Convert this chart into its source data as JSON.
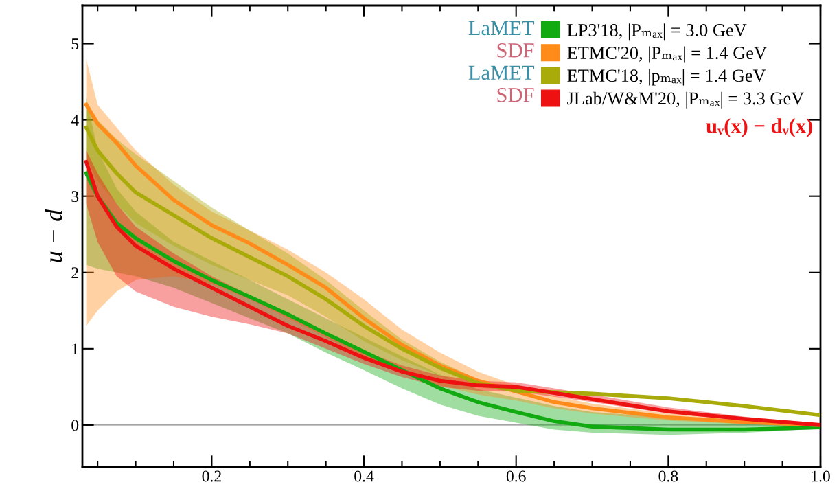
{
  "chart_data": {
    "type": "line",
    "ylabel": "u − d",
    "x": [
      0.035,
      0.05,
      0.075,
      0.1,
      0.15,
      0.2,
      0.25,
      0.3,
      0.35,
      0.4,
      0.45,
      0.5,
      0.55,
      0.6,
      0.65,
      0.7,
      0.8,
      0.9,
      1.0
    ],
    "series": [
      {
        "name": "LP3'18, |Pₘₐₓ| = 3.0 GeV",
        "color": "#11aa11",
        "values": [
          3.3,
          3.0,
          2.65,
          2.45,
          2.15,
          1.9,
          1.68,
          1.45,
          1.2,
          0.96,
          0.72,
          0.48,
          0.3,
          0.17,
          0.05,
          -0.02,
          -0.06,
          -0.06,
          -0.03
        ],
        "lower": [
          2.1,
          2.05,
          2.0,
          1.95,
          1.8,
          1.6,
          1.4,
          1.2,
          0.95,
          0.72,
          0.48,
          0.27,
          0.12,
          0.03,
          -0.06,
          -0.1,
          -0.13,
          -0.1,
          -0.05
        ],
        "upper": [
          4.3,
          3.6,
          3.1,
          2.8,
          2.4,
          2.15,
          1.9,
          1.65,
          1.4,
          1.15,
          0.9,
          0.66,
          0.47,
          0.36,
          0.25,
          0.17,
          0.1,
          0.05,
          0.0
        ]
      },
      {
        "name": "ETMC'20, |Pₘₐₓ| = 1.4 GeV",
        "color": "#ff8c1a",
        "values": [
          4.2,
          3.95,
          3.7,
          3.4,
          2.95,
          2.62,
          2.38,
          2.1,
          1.8,
          1.4,
          1.05,
          0.78,
          0.58,
          0.44,
          0.3,
          0.22,
          0.1,
          0.04,
          0.0
        ],
        "lower": [
          1.3,
          1.5,
          1.75,
          1.9,
          1.95,
          1.85,
          1.65,
          1.4,
          1.15,
          0.9,
          0.7,
          0.52,
          0.4,
          0.32,
          0.22,
          0.15,
          0.06,
          0.01,
          -0.02
        ],
        "upper": [
          4.8,
          4.2,
          3.9,
          3.6,
          3.15,
          2.8,
          2.55,
          2.3,
          2.0,
          1.65,
          1.25,
          0.95,
          0.7,
          0.52,
          0.38,
          0.28,
          0.15,
          0.07,
          0.02
        ]
      },
      {
        "name": "ETMC'18, |pₘₐₓ| = 1.4 GeV",
        "color": "#a8ab0a",
        "values": [
          3.9,
          3.6,
          3.3,
          3.05,
          2.75,
          2.45,
          2.2,
          1.95,
          1.65,
          1.3,
          1.0,
          0.75,
          0.55,
          0.45,
          0.43,
          0.41,
          0.35,
          0.25,
          0.13
        ],
        "lower": [
          3.5,
          3.2,
          2.9,
          2.65,
          2.35,
          2.1,
          1.9,
          1.7,
          1.42,
          1.1,
          0.85,
          0.65,
          0.5,
          0.43,
          0.41,
          0.4,
          0.34,
          0.24,
          0.12
        ],
        "upper": [
          4.25,
          4.0,
          3.75,
          3.55,
          3.2,
          2.85,
          2.55,
          2.25,
          1.9,
          1.5,
          1.12,
          0.83,
          0.6,
          0.47,
          0.44,
          0.42,
          0.36,
          0.26,
          0.14
        ]
      },
      {
        "name": "JLab/W&M'20, |Pₘₐₓ| = 3.3 GeV",
        "color": "#ee1111",
        "values": [
          3.45,
          3.0,
          2.6,
          2.35,
          2.05,
          1.8,
          1.55,
          1.3,
          1.1,
          0.88,
          0.7,
          0.58,
          0.52,
          0.5,
          0.42,
          0.34,
          0.18,
          0.08,
          0.0
        ],
        "lower": [
          2.9,
          2.4,
          1.95,
          1.75,
          1.55,
          1.42,
          1.32,
          1.2,
          1.0,
          0.8,
          0.63,
          0.5,
          0.45,
          0.44,
          0.37,
          0.3,
          0.15,
          0.06,
          -0.01
        ],
        "upper": [
          3.6,
          3.3,
          2.9,
          2.6,
          2.25,
          1.95,
          1.7,
          1.45,
          1.2,
          0.97,
          0.78,
          0.65,
          0.58,
          0.56,
          0.48,
          0.4,
          0.23,
          0.11,
          0.02
        ]
      }
    ],
    "xlim": [
      0.03,
      1.0
    ],
    "xticks": [
      0.2,
      0.4,
      0.6,
      0.8,
      {
        "value": 1.0,
        "label": "1.0"
      }
    ],
    "ylim": [
      -0.55,
      5.5
    ],
    "yticks": [
      0,
      1,
      2,
      3,
      4,
      5
    ],
    "ref_lines": [
      {
        "axis": "y",
        "value": 0,
        "color": "#888888"
      }
    ],
    "legend": "top right",
    "grid": false,
    "marker": "none",
    "line_style": "solid",
    "annotations": [
      "LaMET",
      "SDF",
      "LaMET",
      "SDF",
      "uᵥ(x) − dᵥ(x)"
    ]
  }
}
